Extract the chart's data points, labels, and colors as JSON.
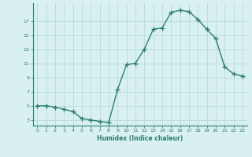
{
  "x": [
    0,
    1,
    2,
    3,
    4,
    5,
    6,
    7,
    8,
    9,
    10,
    11,
    12,
    13,
    14,
    15,
    16,
    17,
    18,
    19,
    20,
    21,
    22,
    23
  ],
  "y": [
    5,
    5,
    4.8,
    4.5,
    4.2,
    3.2,
    3.0,
    2.8,
    2.6,
    7.3,
    10.8,
    11.0,
    13.0,
    15.8,
    16.0,
    18.2,
    18.5,
    18.3,
    17.2,
    15.8,
    14.5,
    10.5,
    9.5,
    9.2
  ],
  "xlabel": "Humidex (Indice chaleur)",
  "yticks": [
    3,
    5,
    7,
    9,
    11,
    13,
    15,
    17
  ],
  "xticks": [
    0,
    1,
    2,
    3,
    4,
    5,
    6,
    7,
    8,
    9,
    10,
    11,
    12,
    13,
    14,
    15,
    16,
    17,
    18,
    19,
    20,
    21,
    22,
    23
  ],
  "xlim": [
    -0.5,
    23.5
  ],
  "ylim": [
    2.2,
    19.5
  ],
  "line_color": "#2e7d6e",
  "bg_color": "#d8f0f0",
  "grid_color": "#b0d8d4",
  "tick_color": "#2e7d6e",
  "marker": "+",
  "markersize": 4,
  "linewidth": 1.0
}
